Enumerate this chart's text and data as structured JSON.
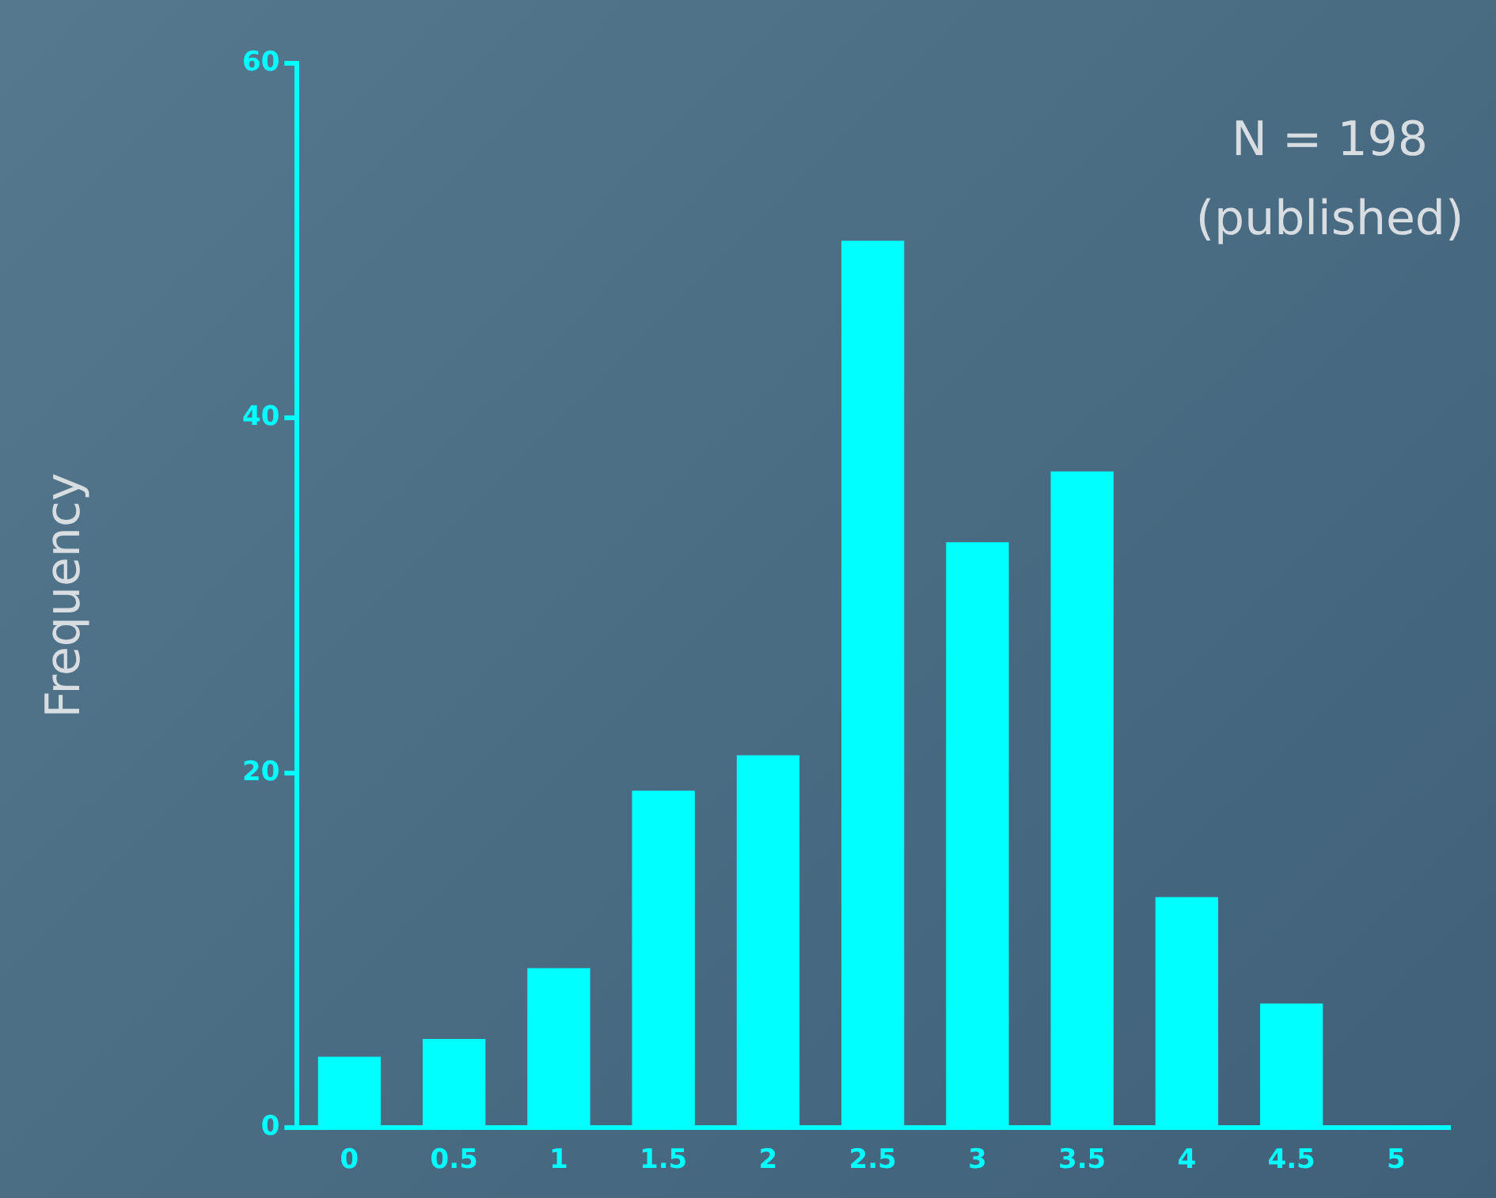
{
  "chart_data": {
    "type": "bar",
    "ylabel": "Frequency",
    "categories": [
      "0",
      "0.5",
      "1",
      "1.5",
      "2",
      "2.5",
      "3",
      "3.5",
      "4",
      "4.5",
      "5"
    ],
    "values": [
      4,
      5,
      9,
      19,
      21,
      50,
      33,
      37,
      13,
      7,
      0
    ],
    "color": "#00ffff",
    "ylim": [
      0,
      60
    ],
    "yticks": [
      0,
      20,
      40,
      60
    ],
    "grid": false,
    "legend": false,
    "annotations": [
      "N = 198",
      "(published)"
    ]
  }
}
